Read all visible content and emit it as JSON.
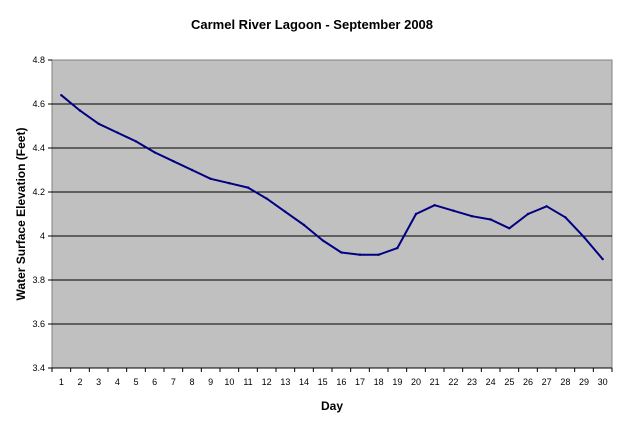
{
  "chart_data": {
    "type": "line",
    "title": "Carmel River Lagoon - September 2008",
    "xlabel": "Day",
    "ylabel": "Water Surface Elevation (Feet)",
    "ylim": [
      3.4,
      4.8
    ],
    "yticks": [
      "3.4",
      "3.6",
      "3.8",
      "4",
      "4.2",
      "4.4",
      "4.6",
      "4.8"
    ],
    "grid": true,
    "legend": "none",
    "colors": {
      "plot_background": "#c0c0c0",
      "gridline": "#000000",
      "series_line": "#000080"
    },
    "categories": [
      "1",
      "2",
      "3",
      "4",
      "5",
      "6",
      "7",
      "8",
      "9",
      "10",
      "11",
      "12",
      "13",
      "14",
      "15",
      "16",
      "17",
      "18",
      "19",
      "20",
      "21",
      "22",
      "23",
      "24",
      "25",
      "26",
      "27",
      "28",
      "29",
      "30"
    ],
    "series": [
      {
        "values": [
          4.64,
          4.57,
          4.51,
          4.47,
          4.43,
          4.38,
          4.34,
          4.3,
          4.26,
          4.24,
          4.22,
          4.17,
          4.11,
          4.05,
          3.98,
          3.925,
          3.915,
          3.915,
          3.945,
          4.1,
          4.14,
          4.115,
          4.09,
          4.075,
          4.035,
          4.1,
          4.135,
          4.085,
          3.995,
          3.895
        ]
      }
    ]
  }
}
